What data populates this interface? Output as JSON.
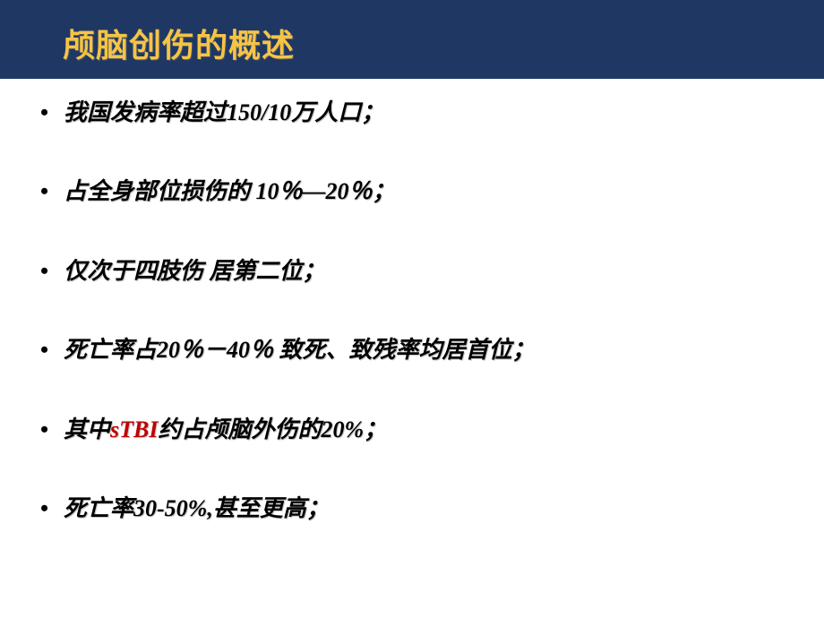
{
  "slide": {
    "title": "颅脑创伤的概述",
    "title_color": "#f6c445",
    "title_bg": "#1f3863",
    "title_fontsize": 36,
    "bullets": [
      {
        "pre": "我国发病率超过150/10万人口；",
        "highlight": "",
        "post": ""
      },
      {
        "pre": " 占全身部位损伤的 10％—20％；",
        "highlight": "",
        "post": ""
      },
      {
        "pre": " 仅次于四肢伤   居第二位；",
        "highlight": "",
        "post": ""
      },
      {
        "pre": " 死亡率占20％－40％ 致死、致残率均居首位；",
        "highlight": "",
        "post": ""
      },
      {
        "pre": " 其中",
        "highlight": "sTBI",
        "post": "约占颅脑外伤的20%；"
      },
      {
        "pre": " 死亡率30-50%,甚至更高；",
        "highlight": "",
        "post": ""
      }
    ],
    "bullet_char": "•",
    "body_fontsize": 26,
    "body_color": "#000000",
    "highlight_color": "#c00000",
    "background": "#ffffff"
  }
}
